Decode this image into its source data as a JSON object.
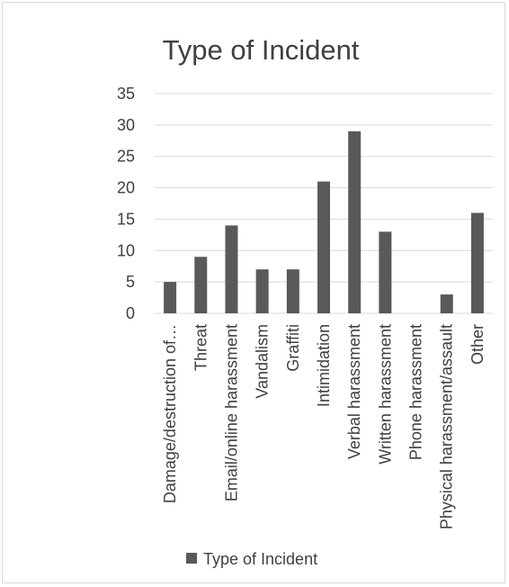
{
  "chart_data": {
    "type": "bar",
    "title": "Type of Incident",
    "categories": [
      "Damage/destruction of…",
      "Threat",
      "Email/online harassment",
      "Vandalism",
      "Graffiti",
      "Intimidation",
      "Verbal harassment",
      "Written harassment",
      "Phone harassment",
      "Physical harassment/assault",
      "Other"
    ],
    "series": [
      {
        "name": "Type of Incident",
        "values": [
          5,
          9,
          14,
          7,
          7,
          21,
          29,
          13,
          0,
          3,
          16
        ]
      }
    ],
    "ylim": [
      0,
      35
    ],
    "yticks": [
      0,
      5,
      10,
      15,
      20,
      25,
      30,
      35
    ],
    "grid": true,
    "legend_position": "bottom",
    "colors": {
      "bar": "#595959",
      "grid": "#d9d9d9",
      "text": "#404040"
    }
  }
}
